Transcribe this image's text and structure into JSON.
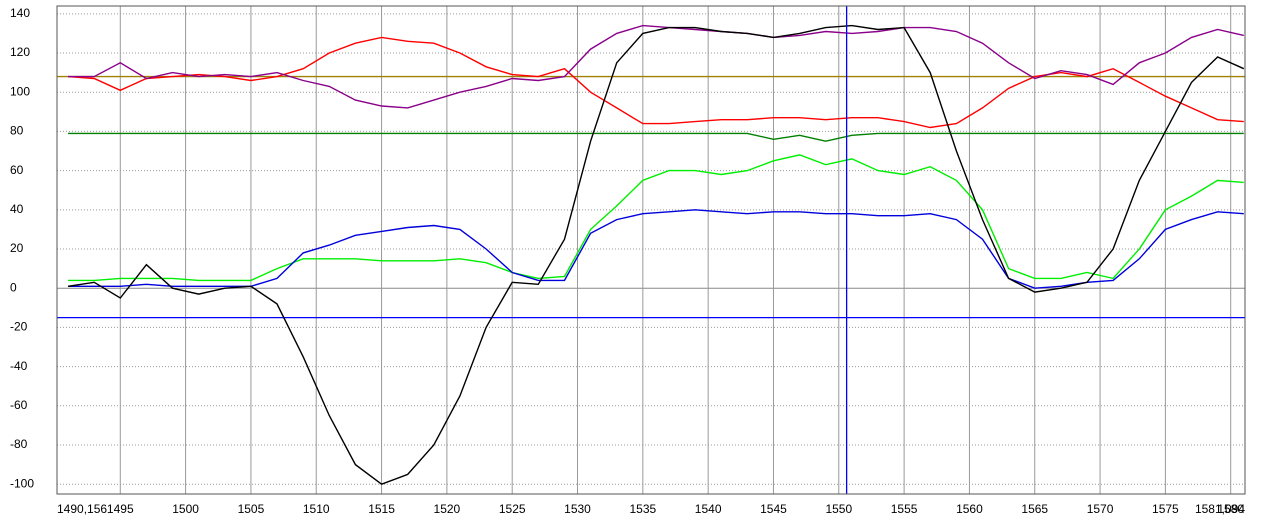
{
  "chart_data": {
    "type": "line",
    "x": [
      1491,
      1493,
      1495,
      1497,
      1499,
      1501,
      1503,
      1505,
      1507,
      1509,
      1511,
      1513,
      1515,
      1517,
      1519,
      1521,
      1523,
      1525,
      1527,
      1529,
      1531,
      1533,
      1535,
      1537,
      1539,
      1541,
      1543,
      1545,
      1547,
      1549,
      1551,
      1553,
      1555,
      1557,
      1559,
      1561,
      1563,
      1565,
      1567,
      1569,
      1571,
      1573,
      1575,
      1577,
      1579,
      1581
    ],
    "series": [
      {
        "color": "#ff0000",
        "values": [
          108,
          107,
          101,
          107,
          108,
          109,
          108,
          106,
          108,
          112,
          120,
          125,
          128,
          126,
          125,
          120,
          113,
          109,
          108,
          112,
          100,
          92,
          84,
          84,
          85,
          86,
          86,
          87,
          87,
          86,
          87,
          87,
          85,
          82,
          84,
          92,
          102,
          108,
          110,
          108,
          112,
          105,
          98,
          92,
          86,
          85
        ]
      },
      {
        "color": "#8b008b",
        "values": [
          108,
          108,
          115,
          107,
          110,
          108,
          109,
          108,
          110,
          106,
          103,
          96,
          93,
          92,
          96,
          100,
          103,
          107,
          106,
          108,
          122,
          130,
          134,
          133,
          132,
          131,
          130,
          128,
          129,
          131,
          130,
          131,
          133,
          133,
          131,
          125,
          115,
          107,
          111,
          109,
          104,
          115,
          120,
          128,
          132,
          129
        ]
      },
      {
        "color": "#008000",
        "values": [
          79,
          79,
          79,
          79,
          79,
          79,
          79,
          79,
          79,
          79,
          79,
          79,
          79,
          79,
          79,
          79,
          79,
          79,
          79,
          79,
          79,
          79,
          79,
          79,
          79,
          79,
          79,
          76,
          78,
          75,
          78,
          79,
          79,
          79,
          79,
          79,
          79,
          79,
          79,
          79,
          79,
          79,
          79,
          79,
          79,
          79
        ]
      },
      {
        "color": "#00ee00",
        "values": [
          4,
          4,
          5,
          5,
          5,
          4,
          4,
          4,
          10,
          15,
          15,
          15,
          14,
          14,
          14,
          15,
          13,
          8,
          5,
          6,
          30,
          42,
          55,
          60,
          60,
          58,
          60,
          65,
          68,
          63,
          66,
          60,
          58,
          62,
          55,
          40,
          10,
          5,
          5,
          8,
          5,
          20,
          40,
          47,
          55,
          54
        ]
      },
      {
        "color": "#0000dd",
        "values": [
          1,
          1,
          1,
          2,
          1,
          1,
          1,
          1,
          5,
          18,
          22,
          27,
          29,
          31,
          32,
          30,
          20,
          8,
          4,
          4,
          28,
          35,
          38,
          39,
          40,
          39,
          38,
          39,
          39,
          38,
          38,
          37,
          37,
          38,
          35,
          25,
          5,
          0,
          1,
          3,
          4,
          15,
          30,
          35,
          39,
          38
        ]
      },
      {
        "color": "#000000",
        "values": [
          1,
          3,
          -5,
          12,
          0,
          -3,
          0,
          1,
          -8,
          -35,
          -65,
          -90,
          -100,
          -95,
          -80,
          -55,
          -20,
          3,
          2,
          25,
          75,
          115,
          130,
          133,
          133,
          131,
          130,
          128,
          130,
          133,
          134,
          132,
          133,
          110,
          70,
          35,
          5,
          -2,
          0,
          3,
          20,
          55,
          80,
          105,
          118,
          112
        ]
      }
    ],
    "hlines": [
      {
        "value": 108,
        "color": "#a08000"
      },
      {
        "value": -15,
        "color": "#0000ff"
      }
    ],
    "vline": {
      "value": 1550.6,
      "color": "#0000ff"
    },
    "xlim": [
      1490.156,
      1581.094
    ],
    "xticks": [
      {
        "value": 1490.156,
        "label": "1490,156"
      },
      1495,
      1500,
      1505,
      1510,
      1515,
      1520,
      1525,
      1530,
      1535,
      1540,
      1545,
      1550,
      1555,
      1560,
      1565,
      1570,
      1575,
      1580,
      {
        "value": 1581.094,
        "label": "1581,094"
      }
    ],
    "ylim": [
      -105,
      144
    ],
    "yticks": [
      -100,
      -80,
      -60,
      -40,
      -20,
      0,
      20,
      40,
      60,
      80,
      100,
      120,
      140
    ],
    "grid": true
  }
}
